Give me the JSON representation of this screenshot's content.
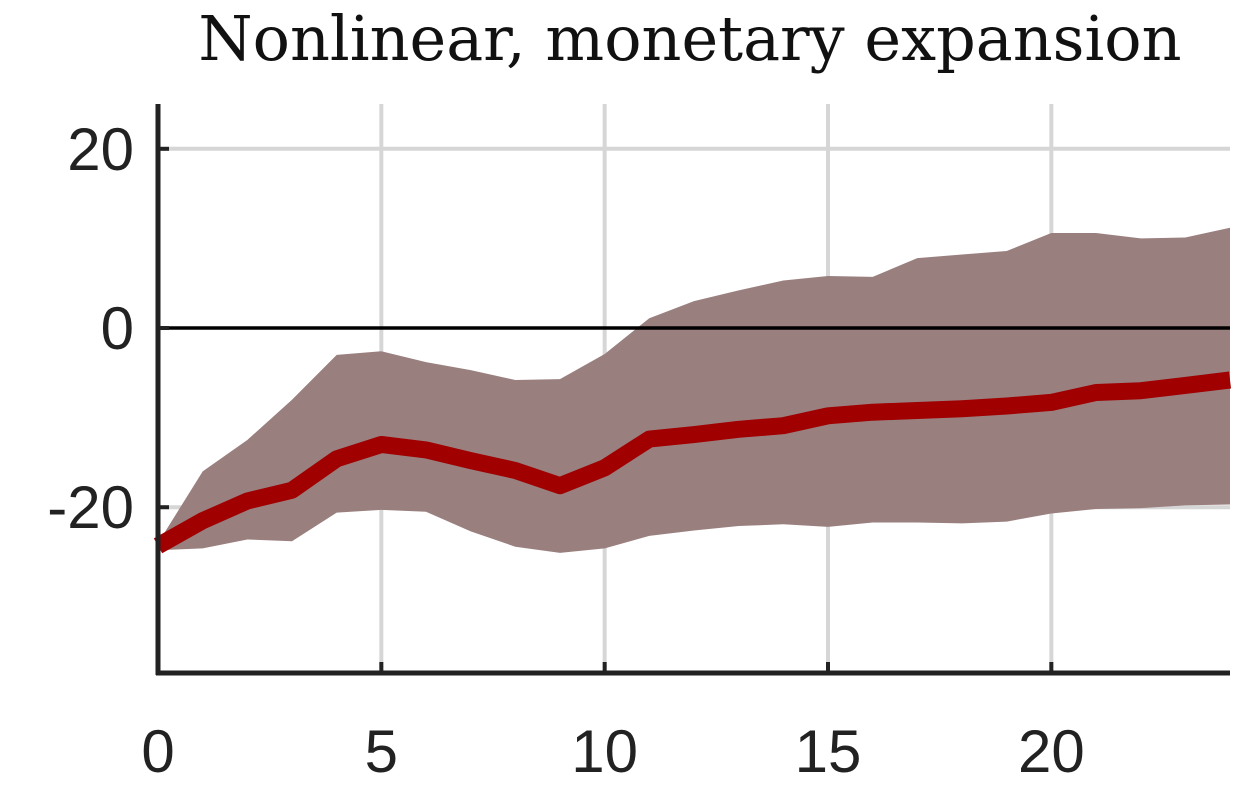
{
  "chart_data": {
    "type": "line",
    "title": "Nonlinear, monetary expansion",
    "xlabel": "",
    "ylabel": "",
    "xlim": [
      0,
      24
    ],
    "ylim": [
      -38.5,
      25
    ],
    "xticks": [
      0,
      5,
      10,
      15,
      20
    ],
    "yticks": [
      -20,
      0,
      20
    ],
    "grid": true,
    "zero_line": true,
    "colors": {
      "line": "#a00000",
      "band": "#9a7f7f",
      "axis": "#222222",
      "grid": "#d6d6d6",
      "zero": "#000000"
    },
    "series": [
      {
        "x": [
          0,
          1,
          2,
          3,
          4,
          5,
          6,
          7,
          8,
          9,
          10,
          11,
          12,
          13,
          14,
          15,
          16,
          17,
          18,
          19,
          20,
          21,
          22,
          23,
          24
        ],
        "values": [
          -24.3,
          -21.5,
          -19.3,
          -18.1,
          -14.6,
          -13.0,
          -13.6,
          -14.8,
          -15.9,
          -17.6,
          -15.6,
          -12.4,
          -11.9,
          -11.3,
          -10.9,
          -9.8,
          -9.4,
          -9.2,
          -9.0,
          -8.7,
          -8.3,
          -7.2,
          -7.0,
          -6.4,
          -5.8
        ],
        "band_upper": [
          -24.0,
          -16.0,
          -12.5,
          -8.0,
          -3.0,
          -2.6,
          -3.8,
          -4.7,
          -5.8,
          -5.7,
          -2.9,
          1.1,
          3.0,
          4.2,
          5.3,
          5.8,
          5.7,
          7.8,
          8.2,
          8.6,
          10.6,
          10.6,
          10.0,
          10.1,
          11.2
        ],
        "band_lower": [
          -24.8,
          -24.6,
          -23.6,
          -23.8,
          -20.6,
          -20.3,
          -20.5,
          -22.7,
          -24.4,
          -25.1,
          -24.6,
          -23.2,
          -22.6,
          -22.1,
          -21.9,
          -22.2,
          -21.7,
          -21.7,
          -21.8,
          -21.6,
          -20.7,
          -20.2,
          -20.1,
          -19.8,
          -19.7
        ]
      }
    ]
  }
}
